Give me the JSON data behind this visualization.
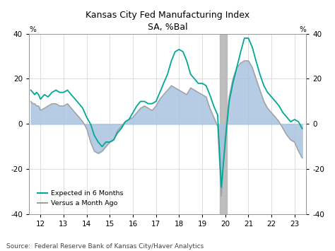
{
  "title_line1": "Kansas City Fed Manufacturing Index",
  "title_line2": "SA, %Bal",
  "source": "Source:  Federal Reserve Bank of Kansas City/Haver Analytics",
  "ylabel_left": "%",
  "ylabel_right": "%",
  "ylim": [
    -40,
    40
  ],
  "yticks": [
    -40,
    -20,
    0,
    20,
    40
  ],
  "xlim": [
    11.5,
    23.5
  ],
  "xticks": [
    12,
    13,
    14,
    15,
    16,
    17,
    18,
    19,
    20,
    21,
    22,
    23
  ],
  "shade_start": 19.75,
  "shade_end": 20.08,
  "shade_color": "#b8b8b8",
  "fill_color": "#a8c4e0",
  "fill_alpha": 0.85,
  "line6m_color": "#00a896",
  "linevam_color": "#a0a0a0",
  "legend_label1": "Expected in 6 Months",
  "legend_label2": "Versus a Month Ago",
  "background_color": "#ffffff",
  "grid_color": "#d8d8d8",
  "x": [
    11.58,
    11.67,
    11.75,
    11.83,
    11.92,
    12.0,
    12.17,
    12.33,
    12.5,
    12.67,
    12.83,
    13.0,
    13.17,
    13.33,
    13.5,
    13.67,
    13.83,
    14.0,
    14.17,
    14.33,
    14.5,
    14.67,
    14.83,
    15.0,
    15.17,
    15.33,
    15.5,
    15.67,
    15.83,
    16.0,
    16.17,
    16.33,
    16.5,
    16.67,
    16.83,
    17.0,
    17.17,
    17.33,
    17.5,
    17.67,
    17.83,
    18.0,
    18.17,
    18.33,
    18.5,
    18.67,
    18.83,
    19.0,
    19.17,
    19.33,
    19.5,
    19.67,
    19.83,
    20.0,
    20.17,
    20.33,
    20.5,
    20.67,
    20.83,
    21.0,
    21.17,
    21.33,
    21.5,
    21.67,
    21.83,
    22.0,
    22.17,
    22.33,
    22.5,
    22.67,
    22.83,
    23.0,
    23.17,
    23.33
  ],
  "y_6m": [
    15,
    14,
    13,
    14,
    13,
    11,
    13,
    12,
    14,
    15,
    14,
    14,
    15,
    13,
    11,
    9,
    7,
    3,
    0,
    -5,
    -8,
    -10,
    -8,
    -8,
    -7,
    -4,
    -2,
    1,
    2,
    5,
    8,
    10,
    10,
    9,
    9,
    10,
    14,
    18,
    22,
    28,
    32,
    33,
    32,
    28,
    22,
    20,
    18,
    18,
    17,
    13,
    8,
    4,
    -28,
    -8,
    10,
    18,
    25,
    32,
    38,
    38,
    34,
    28,
    22,
    17,
    14,
    12,
    10,
    8,
    5,
    3,
    1,
    2,
    1,
    -2
  ],
  "y_current": [
    10,
    9,
    9,
    8,
    8,
    6,
    7,
    8,
    9,
    9,
    8,
    8,
    9,
    7,
    5,
    3,
    1,
    -2,
    -8,
    -12,
    -13,
    -12,
    -10,
    -8,
    -7,
    -3,
    -1,
    1,
    2,
    3,
    5,
    7,
    8,
    7,
    6,
    8,
    11,
    13,
    15,
    17,
    16,
    15,
    14,
    13,
    16,
    15,
    14,
    13,
    12,
    7,
    3,
    -1,
    -32,
    -5,
    12,
    20,
    25,
    27,
    28,
    28,
    25,
    20,
    15,
    10,
    7,
    5,
    3,
    1,
    -2,
    -5,
    -7,
    -8,
    -12,
    -15
  ]
}
